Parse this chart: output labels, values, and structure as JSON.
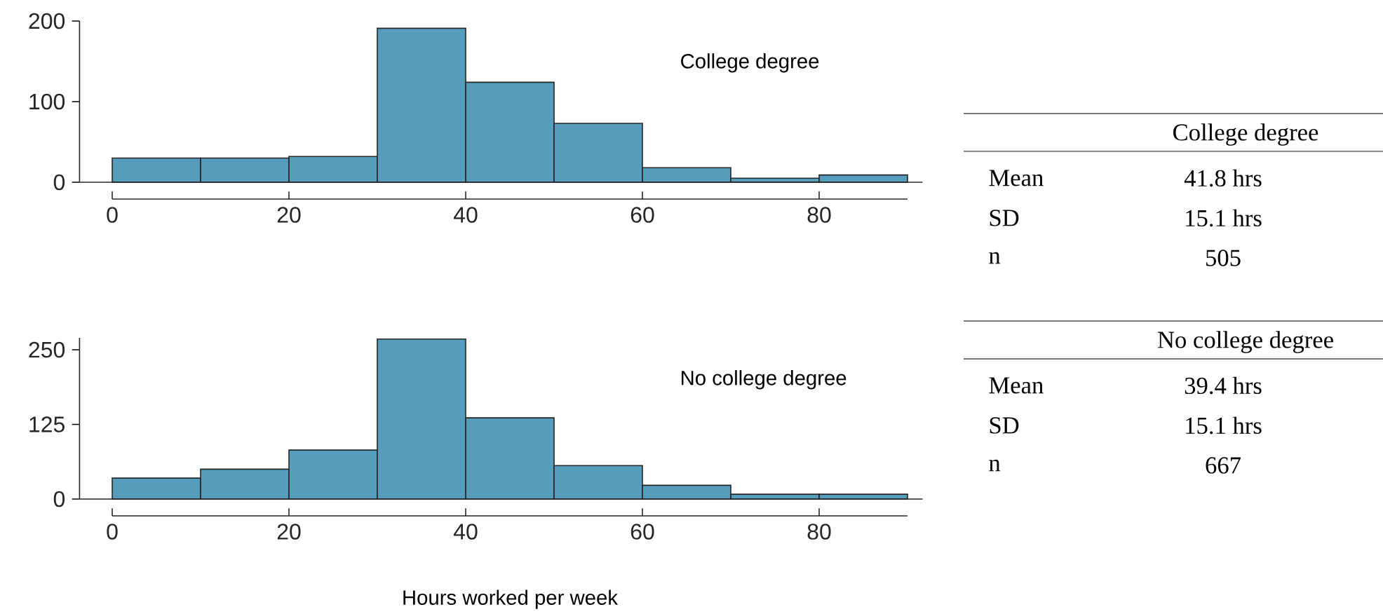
{
  "chart_data": [
    {
      "type": "histogram",
      "title": "College degree",
      "bins": [
        0,
        10,
        20,
        30,
        40,
        50,
        60,
        70,
        80,
        90
      ],
      "values": [
        30,
        30,
        32,
        191,
        124,
        73,
        18,
        5,
        9
      ],
      "color": "#569dbd",
      "xlim": [
        0,
        90
      ],
      "xticks": [
        0,
        20,
        40,
        60,
        80
      ],
      "ylim": [
        0,
        200
      ],
      "yticks": [
        0,
        100,
        200
      ]
    },
    {
      "type": "histogram",
      "title": "No college degree",
      "xlabel": "Hours worked per week",
      "bins": [
        0,
        10,
        20,
        30,
        40,
        50,
        60,
        70,
        80,
        90
      ],
      "values": [
        35,
        50,
        82,
        268,
        136,
        56,
        23,
        8,
        8
      ],
      "color": "#569dbd",
      "xlim": [
        0,
        90
      ],
      "xticks": [
        0,
        20,
        40,
        60,
        80
      ],
      "ylim": [
        0,
        270
      ],
      "yticks": [
        0,
        125,
        250
      ]
    },
    {
      "type": "other",
      "title": "College degree",
      "annotations": [
        "Mean",
        "41.8 hrs",
        "SD",
        "15.1 hrs",
        "n",
        "505"
      ]
    },
    {
      "type": "other",
      "title": "No college degree",
      "annotations": [
        "Mean",
        "39.4 hrs",
        "SD",
        "15.1 hrs",
        "n",
        "667"
      ]
    }
  ]
}
